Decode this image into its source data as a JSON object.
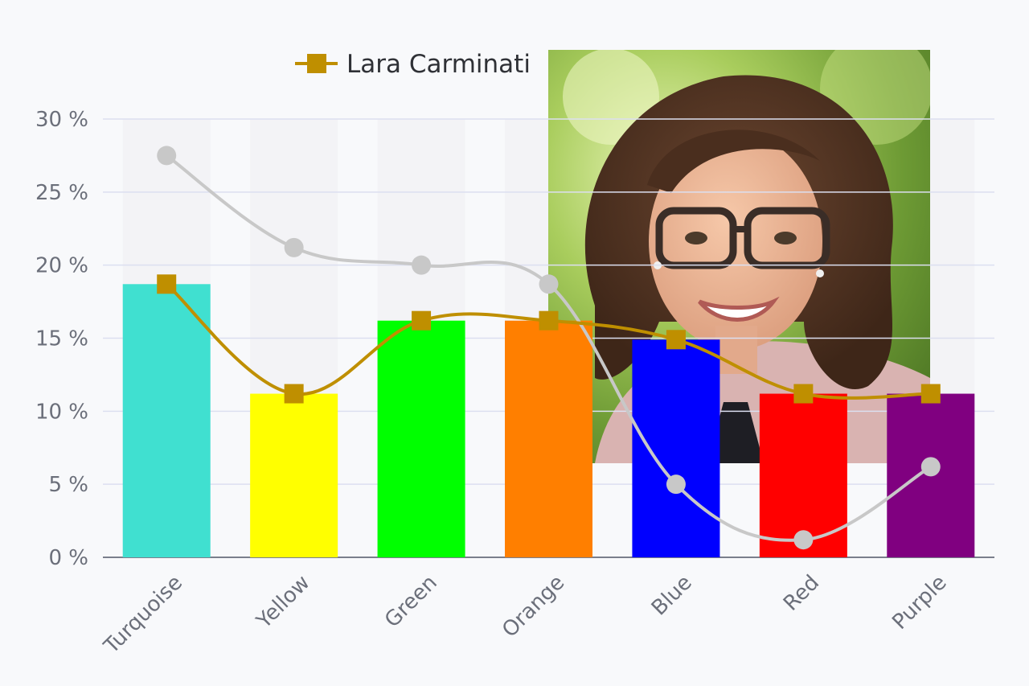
{
  "chart_data": {
    "type": "bar",
    "categories": [
      "Turquoise",
      "Yellow",
      "Green",
      "Orange",
      "Blue",
      "Red",
      "Purple"
    ],
    "bar_colors": [
      "#40e0d0",
      "#ffff00",
      "#00ff00",
      "#ff7f00",
      "#0000ff",
      "#ff0000",
      "#800080"
    ],
    "series": [
      {
        "name": "",
        "kind": "bar",
        "values": [
          18.7,
          11.2,
          16.2,
          16.2,
          14.9,
          11.2,
          11.2
        ]
      },
      {
        "name": "Lara Carminati",
        "kind": "line",
        "marker": "square",
        "color": "#bf8f00",
        "values": [
          18.7,
          11.2,
          16.2,
          16.2,
          14.9,
          11.2,
          11.2
        ]
      },
      {
        "name": "",
        "kind": "line",
        "marker": "circle",
        "color": "#c8c8c8",
        "values": [
          27.5,
          21.2,
          20.0,
          18.7,
          5.0,
          1.2,
          6.2
        ]
      }
    ],
    "y_ticks": [
      "0 %",
      "5 %",
      "10 %",
      "15 %",
      "20 %",
      "25 %",
      "30 %"
    ],
    "ylim": [
      0,
      30
    ],
    "grid": true,
    "legend": {
      "position": "top-center",
      "entries": [
        "Lara Carminati"
      ]
    },
    "image_overlay": "portrait photo of smiling woman with curly hair and glasses"
  }
}
